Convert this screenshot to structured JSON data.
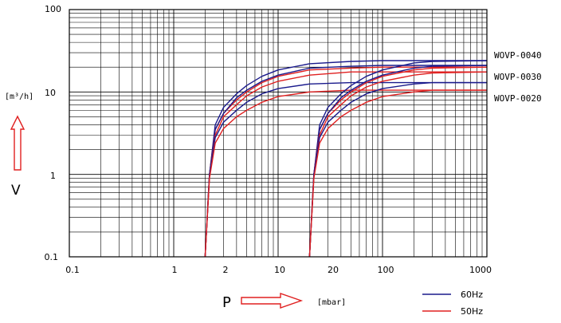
{
  "chart_data": {
    "type": "line",
    "x_scale": "log",
    "y_scale": "log",
    "xlim": [
      0.1,
      1000
    ],
    "ylim": [
      0.1,
      100
    ],
    "x_tick_labels": [
      "0.1",
      "1",
      "2",
      "10",
      "20",
      "100",
      "1000"
    ],
    "y_tick_labels": [
      "100",
      "10",
      "1",
      "0.1"
    ],
    "xlabel": "P",
    "x_unit": "[mbar]",
    "ylabel": "V",
    "y_unit": "[m³/h]",
    "grid": true,
    "legend": [
      {
        "label": "60Hz",
        "color": "#1a1a8c"
      },
      {
        "label": "50Hz",
        "color": "#e02020"
      }
    ],
    "model_labels": [
      "WOVP-0040",
      "WOVP-0030",
      "WOVP-0020"
    ],
    "curve_start_pressures": [
      2,
      20
    ],
    "series": [
      {
        "group": "WOVP-0040",
        "frequency": "60Hz",
        "start": 2,
        "x": [
          2,
          2.2,
          2.5,
          3,
          4,
          5,
          7,
          10,
          20,
          50,
          100,
          250,
          1000
        ],
        "y": [
          0.1,
          1,
          4,
          6.5,
          9.5,
          12,
          15.5,
          18.5,
          22,
          23.5,
          24,
          24,
          24
        ]
      },
      {
        "group": "WOVP-0040",
        "frequency": "50Hz",
        "start": 2,
        "x": [
          2,
          2.2,
          2.5,
          3,
          4,
          5,
          7,
          10,
          20,
          50,
          100,
          250,
          1000
        ],
        "y": [
          0.1,
          1,
          3.5,
          5.5,
          8,
          10,
          13,
          15.5,
          18.5,
          19.5,
          20,
          20,
          20
        ]
      },
      {
        "group": "WOVP-0030",
        "frequency": "60Hz",
        "start": 2,
        "x": [
          2,
          2.2,
          2.5,
          3,
          4,
          5,
          7,
          10,
          20,
          50,
          100,
          250,
          1000
        ],
        "y": [
          0.1,
          1,
          3.5,
          5.5,
          8.5,
          10.5,
          13.5,
          16,
          19.5,
          20.5,
          21,
          21,
          21
        ]
      },
      {
        "group": "WOVP-0030",
        "frequency": "50Hz",
        "start": 2,
        "x": [
          2,
          2.2,
          2.5,
          3,
          4,
          5,
          7,
          10,
          20,
          50,
          100,
          250,
          1000
        ],
        "y": [
          0.1,
          1,
          3,
          5,
          7,
          9,
          11.5,
          13.5,
          16,
          17.5,
          17.5,
          17.5,
          17.5
        ]
      },
      {
        "group": "WOVP-0020",
        "frequency": "60Hz",
        "start": 2,
        "x": [
          2,
          2.2,
          2.5,
          3,
          4,
          5,
          7,
          10,
          20,
          50,
          100,
          250,
          1000
        ],
        "y": [
          0.1,
          1,
          2.8,
          4.3,
          6,
          7.5,
          9.5,
          11,
          12.5,
          13,
          13,
          13,
          13
        ]
      },
      {
        "group": "WOVP-0020",
        "frequency": "50Hz",
        "start": 2,
        "x": [
          2,
          2.2,
          2.5,
          3,
          4,
          5,
          7,
          10,
          20,
          50,
          100,
          250,
          1000
        ],
        "y": [
          0.1,
          0.9,
          2.4,
          3.6,
          5,
          6,
          7.5,
          8.8,
          10,
          10.5,
          10.5,
          10.5,
          10.5
        ]
      },
      {
        "group": "WOVP-0040",
        "frequency": "60Hz",
        "start": 20,
        "x": [
          20,
          22,
          25,
          30,
          40,
          50,
          70,
          100,
          200,
          300,
          1000
        ],
        "y": [
          0.1,
          1,
          4,
          6.5,
          9.5,
          12,
          15.5,
          18.5,
          22.5,
          23.5,
          24
        ]
      },
      {
        "group": "WOVP-0040",
        "frequency": "50Hz",
        "start": 20,
        "x": [
          20,
          22,
          25,
          30,
          40,
          50,
          70,
          100,
          200,
          300,
          1000
        ],
        "y": [
          0.1,
          1,
          3.5,
          5.5,
          8,
          10,
          13,
          15.5,
          18.5,
          19.5,
          20
        ]
      },
      {
        "group": "WOVP-0030",
        "frequency": "60Hz",
        "start": 20,
        "x": [
          20,
          22,
          25,
          30,
          40,
          50,
          70,
          100,
          200,
          300,
          1000
        ],
        "y": [
          0.1,
          1,
          3.5,
          5.5,
          8.5,
          10.5,
          13.5,
          16,
          19.5,
          20.5,
          21
        ]
      },
      {
        "group": "WOVP-0030",
        "frequency": "50Hz",
        "start": 20,
        "x": [
          20,
          22,
          25,
          30,
          40,
          50,
          70,
          100,
          200,
          300,
          1000
        ],
        "y": [
          0.1,
          1,
          3,
          5,
          7,
          9,
          11.5,
          13.5,
          16,
          17,
          17.5
        ]
      },
      {
        "group": "WOVP-0020",
        "frequency": "60Hz",
        "start": 20,
        "x": [
          20,
          22,
          25,
          30,
          40,
          50,
          70,
          100,
          200,
          300,
          1000
        ],
        "y": [
          0.1,
          1,
          2.8,
          4.3,
          6,
          7.5,
          9.5,
          11,
          12.5,
          13,
          13
        ]
      },
      {
        "group": "WOVP-0020",
        "frequency": "50Hz",
        "start": 20,
        "x": [
          20,
          22,
          25,
          30,
          40,
          50,
          70,
          100,
          200,
          300,
          1000
        ],
        "y": [
          0.1,
          0.9,
          2.4,
          3.6,
          5,
          6,
          7.5,
          8.8,
          10,
          10.5,
          10.5
        ]
      }
    ]
  }
}
